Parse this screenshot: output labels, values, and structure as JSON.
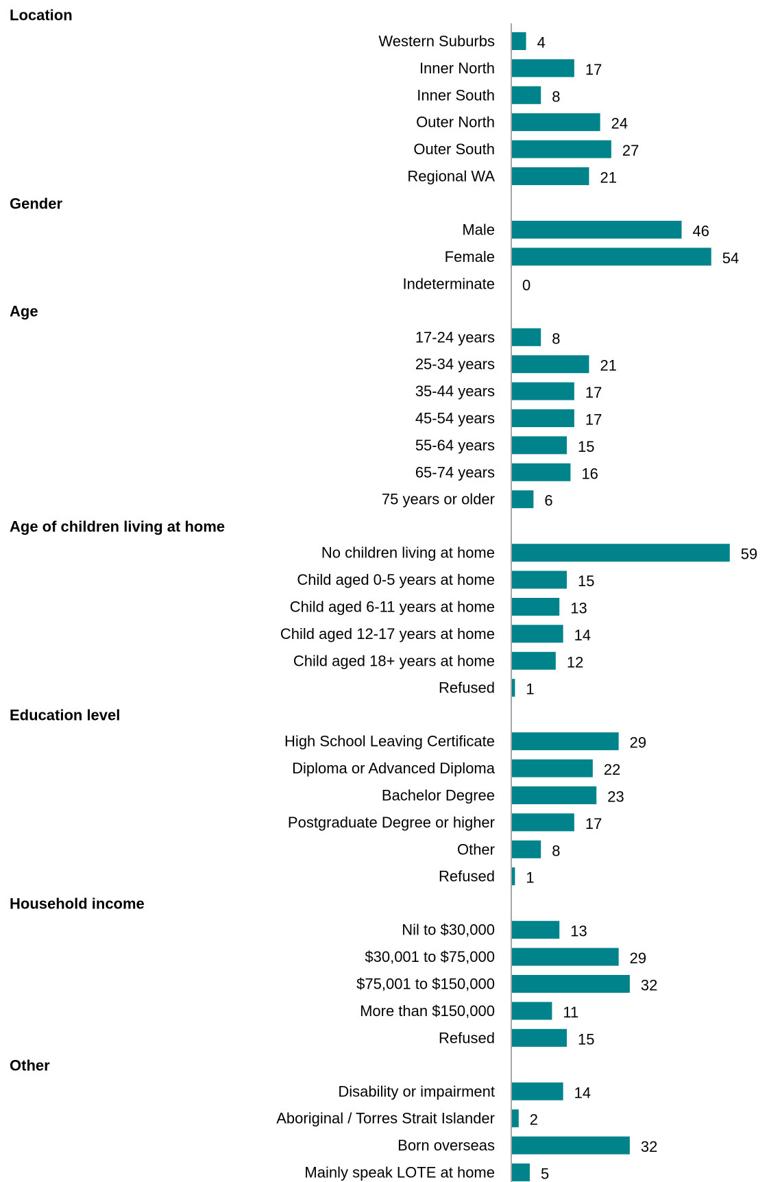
{
  "chart_data": {
    "type": "bar",
    "orientation": "horizontal",
    "title": "",
    "xlabel": "",
    "ylabel": "",
    "xlim": [
      0,
      60
    ],
    "grid": false,
    "legend": "none",
    "bar_color": "#00838a",
    "groups": [
      {
        "heading": "Location",
        "categories": [
          "Western Suburbs",
          "Inner North",
          "Inner South",
          "Outer North",
          "Outer South",
          "Regional WA"
        ],
        "values": [
          4,
          17,
          8,
          24,
          27,
          21
        ]
      },
      {
        "heading": "Gender",
        "categories": [
          "Male",
          "Female",
          "Indeterminate"
        ],
        "values": [
          46,
          54,
          0
        ]
      },
      {
        "heading": "Age",
        "categories": [
          "17-24 years",
          "25-34 years",
          "35-44 years",
          "45-54 years",
          "55-64 years",
          "65-74 years",
          "75 years or older"
        ],
        "values": [
          8,
          21,
          17,
          17,
          15,
          16,
          6
        ]
      },
      {
        "heading": "Age of children living at home",
        "categories": [
          "No children living at home",
          "Child aged 0-5 years at home",
          "Child aged 6-11 years at home",
          "Child aged 12-17 years at home",
          "Child aged 18+ years at home",
          "Refused"
        ],
        "values": [
          59,
          15,
          13,
          14,
          12,
          1
        ]
      },
      {
        "heading": "Education level",
        "categories": [
          "High School Leaving Certificate",
          "Diploma or Advanced Diploma",
          "Bachelor Degree",
          "Postgraduate Degree or higher",
          "Other",
          "Refused"
        ],
        "values": [
          29,
          22,
          23,
          17,
          8,
          1
        ]
      },
      {
        "heading": "Household income",
        "categories": [
          "Nil to $30,000",
          "$30,001 to $75,000",
          "$75,001 to $150,000",
          "More than $150,000",
          "Refused"
        ],
        "values": [
          13,
          29,
          32,
          11,
          15
        ]
      },
      {
        "heading": "Other",
        "categories": [
          "Disability or impairment",
          "Aboriginal / Torres Strait Islander",
          "Born overseas",
          "Mainly speak LOTE at home"
        ],
        "values": [
          14,
          2,
          32,
          5
        ]
      }
    ]
  }
}
